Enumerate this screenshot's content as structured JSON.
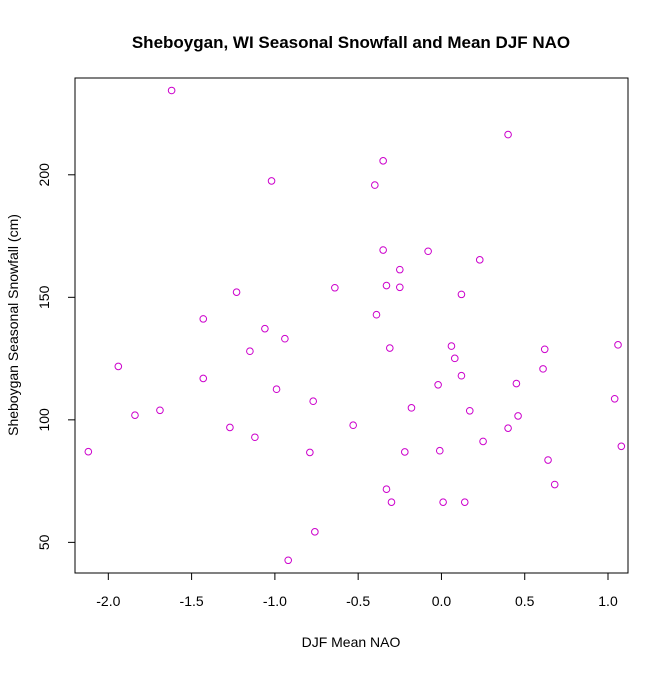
{
  "chart_data": {
    "type": "scatter",
    "title": "Sheboygan, WI Seasonal Snowfall and Mean DJF NAO",
    "xlabel": "DJF Mean NAO",
    "ylabel": "Sheboygan Seasonal Snowfall (cm)",
    "xlim": [
      -2.2,
      1.12
    ],
    "ylim": [
      37.5,
      239.5
    ],
    "x_ticks": [
      "-2.0",
      "-1.5",
      "-1.0",
      "-0.5",
      "0.0",
      "0.5",
      "1.0"
    ],
    "x_tick_values": [
      -2.0,
      -1.5,
      -1.0,
      -0.5,
      0.0,
      0.5,
      1.0
    ],
    "y_ticks": [
      "50",
      "100",
      "150",
      "200"
    ],
    "y_tick_values": [
      50,
      100,
      150,
      200
    ],
    "grid": false,
    "marker_color": "#cc00cc",
    "points": [
      {
        "x": -2.12,
        "y": 87.0
      },
      {
        "x": -1.94,
        "y": 121.8
      },
      {
        "x": -1.84,
        "y": 101.9
      },
      {
        "x": -1.69,
        "y": 103.9
      },
      {
        "x": -1.62,
        "y": 234.4
      },
      {
        "x": -1.43,
        "y": 141.2
      },
      {
        "x": -1.43,
        "y": 116.9
      },
      {
        "x": -1.27,
        "y": 96.9
      },
      {
        "x": -1.23,
        "y": 152.1
      },
      {
        "x": -1.15,
        "y": 128.0
      },
      {
        "x": -1.12,
        "y": 92.9
      },
      {
        "x": -1.06,
        "y": 137.2
      },
      {
        "x": -1.02,
        "y": 197.5
      },
      {
        "x": -0.99,
        "y": 112.5
      },
      {
        "x": -0.94,
        "y": 133.1
      },
      {
        "x": -0.92,
        "y": 42.7
      },
      {
        "x": -0.79,
        "y": 86.7
      },
      {
        "x": -0.77,
        "y": 107.6
      },
      {
        "x": -0.76,
        "y": 54.3
      },
      {
        "x": -0.64,
        "y": 153.9
      },
      {
        "x": -0.53,
        "y": 97.8
      },
      {
        "x": -0.4,
        "y": 195.8
      },
      {
        "x": -0.39,
        "y": 142.9
      },
      {
        "x": -0.35,
        "y": 169.3
      },
      {
        "x": -0.35,
        "y": 205.7
      },
      {
        "x": -0.33,
        "y": 154.8
      },
      {
        "x": -0.33,
        "y": 71.7
      },
      {
        "x": -0.31,
        "y": 129.3
      },
      {
        "x": -0.3,
        "y": 66.4
      },
      {
        "x": -0.25,
        "y": 161.3
      },
      {
        "x": -0.25,
        "y": 154.1
      },
      {
        "x": -0.22,
        "y": 86.9
      },
      {
        "x": -0.18,
        "y": 104.9
      },
      {
        "x": -0.08,
        "y": 168.8
      },
      {
        "x": -0.02,
        "y": 114.3
      },
      {
        "x": -0.01,
        "y": 87.4
      },
      {
        "x": 0.01,
        "y": 66.4
      },
      {
        "x": 0.06,
        "y": 130.1
      },
      {
        "x": 0.08,
        "y": 125.1
      },
      {
        "x": 0.12,
        "y": 151.2
      },
      {
        "x": 0.12,
        "y": 118.0
      },
      {
        "x": 0.14,
        "y": 66.4
      },
      {
        "x": 0.17,
        "y": 103.7
      },
      {
        "x": 0.23,
        "y": 165.3
      },
      {
        "x": 0.25,
        "y": 91.2
      },
      {
        "x": 0.4,
        "y": 216.4
      },
      {
        "x": 0.4,
        "y": 96.6
      },
      {
        "x": 0.45,
        "y": 114.8
      },
      {
        "x": 0.46,
        "y": 101.6
      },
      {
        "x": 0.61,
        "y": 120.8
      },
      {
        "x": 0.62,
        "y": 128.8
      },
      {
        "x": 0.64,
        "y": 83.6
      },
      {
        "x": 0.68,
        "y": 73.6
      },
      {
        "x": 1.04,
        "y": 108.6
      },
      {
        "x": 1.06,
        "y": 130.6
      },
      {
        "x": 1.08,
        "y": 89.2
      }
    ]
  }
}
